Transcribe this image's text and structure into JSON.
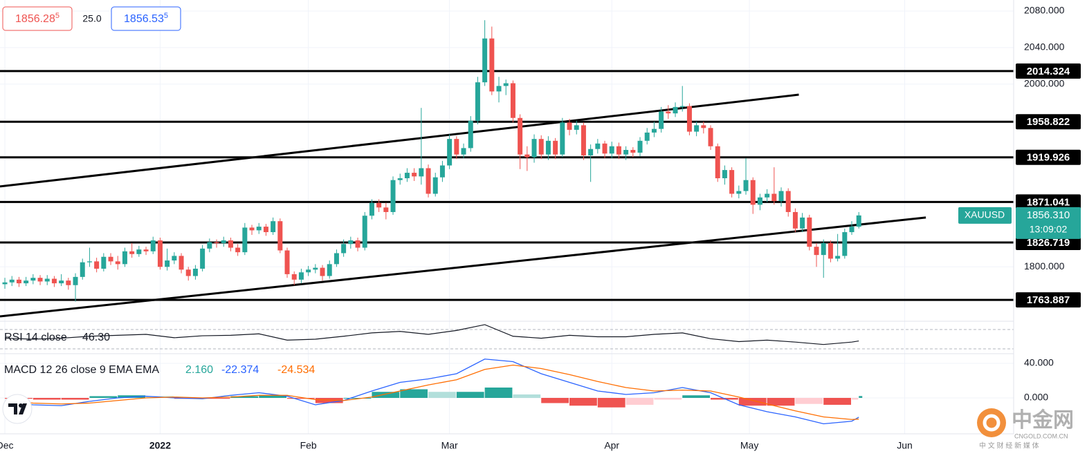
{
  "header": {
    "bid": {
      "main": "1856.28",
      "sup": "5"
    },
    "spread": "25.0",
    "ask": {
      "main": "1856.53",
      "sup": "5"
    }
  },
  "chart_data": [
    {
      "type": "candlestick",
      "open": [
        1781,
        1783,
        1786,
        1782,
        1785,
        1788,
        1784,
        1787,
        1782,
        1785,
        1780,
        1789,
        1805,
        1806,
        1798,
        1811,
        1806,
        1803,
        1817,
        1814,
        1819,
        1817,
        1829,
        1800,
        1807,
        1812,
        1797,
        1790,
        1798,
        1820,
        1827,
        1826,
        1829,
        1821,
        1816,
        1843,
        1840,
        1844,
        1838,
        1850,
        1818,
        1792,
        1786,
        1794,
        1797,
        1799,
        1790,
        1803,
        1815,
        1825,
        1829,
        1821,
        1856,
        1870,
        1865,
        1860,
        1895,
        1897,
        1903,
        1899,
        1908,
        1880,
        1898,
        1911,
        1940,
        1923,
        1930,
        1960,
        2002,
        2050,
        1992,
        1998,
        2001,
        1963,
        1923,
        1920,
        1940,
        1923,
        1938,
        1923,
        1958,
        1950,
        1955,
        1922,
        1929,
        1935,
        1924,
        1932,
        1923,
        1928,
        1925,
        1938,
        1947,
        1951,
        1970,
        1968,
        1975,
        1976,
        1948,
        1955,
        1952,
        1932,
        1897,
        1906,
        1880,
        1883,
        1895,
        1868,
        1876,
        1880,
        1872,
        1883,
        1860,
        1842,
        1854,
        1822,
        1813,
        1826,
        1809,
        1812,
        1838,
        1844
      ],
      "high": [
        1788,
        1790,
        1789,
        1789,
        1792,
        1791,
        1791,
        1790,
        1792,
        1788,
        1793,
        1809,
        1821,
        1810,
        1815,
        1815,
        1812,
        1821,
        1826,
        1823,
        1822,
        1833,
        1832,
        1820,
        1816,
        1815,
        1800,
        1802,
        1824,
        1831,
        1830,
        1833,
        1832,
        1825,
        1848,
        1846,
        1848,
        1847,
        1854,
        1853,
        1821,
        1795,
        1798,
        1801,
        1803,
        1802,
        1807,
        1819,
        1830,
        1833,
        1832,
        1860,
        1874,
        1874,
        1870,
        1899,
        1902,
        1908,
        1908,
        1974,
        1912,
        1903,
        1916,
        1945,
        1943,
        1935,
        1965,
        2008,
        2070,
        2063,
        2008,
        2005,
        2004,
        1967,
        1932,
        1945,
        1944,
        1943,
        1941,
        1963,
        1962,
        1960,
        1958,
        1934,
        1940,
        1938,
        1937,
        1936,
        1932,
        1931,
        1942,
        1952,
        1959,
        1975,
        1977,
        1980,
        1998,
        1979,
        1959,
        1959,
        1955,
        1935,
        1911,
        1909,
        1889,
        1919,
        1898,
        1880,
        1885,
        1909,
        1887,
        1886,
        1864,
        1859,
        1857,
        1826,
        1830,
        1829,
        1836,
        1842,
        1850,
        1860
      ],
      "low": [
        1776,
        1779,
        1778,
        1779,
        1781,
        1780,
        1780,
        1778,
        1779,
        1775,
        1762,
        1786,
        1800,
        1794,
        1795,
        1802,
        1797,
        1800,
        1810,
        1811,
        1813,
        1814,
        1797,
        1796,
        1803,
        1793,
        1785,
        1786,
        1795,
        1816,
        1821,
        1822,
        1817,
        1812,
        1813,
        1835,
        1836,
        1834,
        1835,
        1815,
        1788,
        1780,
        1782,
        1790,
        1793,
        1785,
        1787,
        1800,
        1811,
        1820,
        1817,
        1818,
        1852,
        1860,
        1852,
        1857,
        1890,
        1893,
        1894,
        1890,
        1876,
        1877,
        1893,
        1907,
        1918,
        1919,
        1926,
        1956,
        1998,
        1988,
        1980,
        1988,
        1958,
        1907,
        1905,
        1914,
        1918,
        1917,
        1918,
        1920,
        1944,
        1945,
        1917,
        1893,
        1924,
        1919,
        1919,
        1918,
        1917,
        1920,
        1921,
        1934,
        1942,
        1947,
        1962,
        1964,
        1970,
        1944,
        1943,
        1946,
        1928,
        1893,
        1890,
        1876,
        1875,
        1879,
        1858,
        1862,
        1871,
        1868,
        1866,
        1855,
        1838,
        1838,
        1818,
        1800,
        1788,
        1805,
        1806,
        1809,
        1835,
        1842
      ],
      "close": [
        1783,
        1786,
        1782,
        1785,
        1788,
        1784,
        1787,
        1782,
        1785,
        1780,
        1789,
        1805,
        1806,
        1798,
        1811,
        1806,
        1803,
        1817,
        1814,
        1819,
        1817,
        1829,
        1800,
        1807,
        1812,
        1797,
        1790,
        1798,
        1820,
        1827,
        1826,
        1829,
        1821,
        1816,
        1843,
        1840,
        1844,
        1838,
        1850,
        1818,
        1792,
        1786,
        1794,
        1797,
        1799,
        1790,
        1803,
        1815,
        1825,
        1829,
        1821,
        1856,
        1870,
        1865,
        1860,
        1895,
        1897,
        1903,
        1899,
        1908,
        1880,
        1898,
        1911,
        1940,
        1923,
        1930,
        1960,
        2002,
        2050,
        1992,
        1998,
        2001,
        1963,
        1923,
        1920,
        1940,
        1923,
        1938,
        1923,
        1958,
        1950,
        1955,
        1922,
        1929,
        1935,
        1924,
        1932,
        1923,
        1928,
        1925,
        1938,
        1947,
        1951,
        1970,
        1968,
        1975,
        1976,
        1948,
        1955,
        1952,
        1932,
        1897,
        1906,
        1880,
        1883,
        1895,
        1868,
        1876,
        1880,
        1872,
        1883,
        1860,
        1842,
        1854,
        1822,
        1813,
        1826,
        1809,
        1812,
        1838,
        1844,
        1856.31
      ],
      "colors": {
        "up": "#26a69a",
        "down": "#ef5350"
      },
      "xlim": [
        -0.69,
        142.94
      ],
      "ylim": [
        1740.5,
        2092.1
      ],
      "xticks": [
        {
          "value": 0,
          "label": "Dec"
        },
        {
          "value": 22,
          "label": "2022"
        },
        {
          "value": 43,
          "label": "Feb"
        },
        {
          "value": 63,
          "label": "Mar"
        },
        {
          "value": 86,
          "label": "Apr"
        },
        {
          "value": 105.5,
          "label": "May"
        },
        {
          "value": 127.5,
          "label": "Jun"
        }
      ],
      "yticks": [
        {
          "value": 2080,
          "label": "2080.000"
        },
        {
          "value": 2040,
          "label": "2040.000"
        },
        {
          "value": 2000,
          "label": "2000.000"
        },
        {
          "value": 1800,
          "label": "1800.000"
        }
      ],
      "levels": [
        2014.324,
        1958.822,
        1919.926,
        1871.041,
        1826.719,
        1763.887
      ],
      "trendlines": [
        {
          "x": [
            -0.69,
            112.5
          ],
          "y": [
            1888,
            1988.5
          ]
        },
        {
          "x": [
            -0.69,
            130.5
          ],
          "y": [
            1745.8,
            1854
          ]
        }
      ],
      "symbol": "XAUUSD",
      "last_price": {
        "value": 1856.31,
        "label": "1856.310"
      },
      "countdown": "13:09:02",
      "grid": true
    },
    {
      "type": "line",
      "title": "RSI 14 close",
      "value_label": "46.30",
      "color": "#131722",
      "x": [
        0,
        4,
        8,
        12,
        16,
        20,
        24,
        28,
        32,
        36,
        40,
        44,
        48,
        52,
        56,
        60,
        64,
        68,
        72,
        76,
        80,
        84,
        88,
        92,
        96,
        100,
        104,
        108,
        112,
        116,
        120,
        121
      ],
      "values": [
        52,
        50,
        52,
        56,
        58,
        60,
        53,
        57,
        58,
        61,
        48,
        50,
        56,
        63,
        66,
        60,
        68,
        80,
        56,
        52,
        58,
        55,
        55,
        60,
        63,
        51,
        45,
        48,
        44,
        39,
        44,
        46.3
      ],
      "ylim": [
        20,
        87.1
      ],
      "bands": [
        70,
        30
      ]
    },
    {
      "type": "macd",
      "title": "MACD 12 26 close 9 EMA EMA",
      "legend": [
        "2.160",
        "-22.374",
        "-24.534"
      ],
      "x": [
        0,
        4,
        8,
        12,
        16,
        20,
        24,
        28,
        32,
        36,
        40,
        44,
        48,
        52,
        56,
        60,
        64,
        68,
        72,
        76,
        80,
        84,
        88,
        92,
        96,
        100,
        104,
        108,
        112,
        116,
        120,
        121
      ],
      "histogram": [
        -1,
        -2,
        -2,
        2,
        3,
        2,
        -1,
        -1,
        2,
        3,
        -1,
        -6,
        0,
        7,
        10,
        7,
        7,
        12,
        4,
        -6,
        -9,
        -11,
        -8,
        -2,
        3,
        -2,
        -9,
        -9,
        -7,
        -8,
        -2,
        2.16
      ],
      "macd": [
        -5,
        -8,
        -9,
        -4,
        0,
        2,
        0,
        -1,
        3,
        6,
        2,
        -8,
        -3,
        8,
        18,
        22,
        28,
        45,
        42,
        28,
        18,
        8,
        4,
        6,
        12,
        6,
        -8,
        -16,
        -22,
        -30,
        -27,
        -22.374
      ],
      "signal": [
        -4,
        -6,
        -7,
        -6,
        -3,
        0,
        1,
        0,
        1,
        3,
        3,
        -2,
        -3,
        1,
        8,
        15,
        21,
        33,
        38,
        34,
        27,
        19,
        12,
        8,
        9,
        8,
        1,
        -7,
        -15,
        -22,
        -25,
        -24.534
      ],
      "colors": {
        "histogram": "#26a69a",
        "macd": "#2962ff",
        "signal": "#ff6d00"
      },
      "ylim": [
        -41.6,
        51.2
      ],
      "yticks": [
        {
          "value": 40,
          "label": "40.000"
        },
        {
          "value": 0,
          "label": "0.000"
        }
      ]
    }
  ],
  "watermark": {
    "brand": "中金网",
    "site": "CNGOLD.COM.CN",
    "tagline": "中 文 财 经 新 媒 体"
  }
}
